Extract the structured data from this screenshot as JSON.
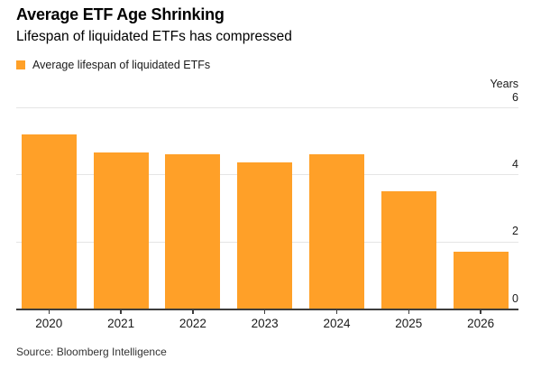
{
  "header": {
    "title": "Average ETF Age Shrinking",
    "subtitle": "Lifespan of liquidated ETFs has compressed"
  },
  "legend": {
    "label": "Average lifespan of liquidated ETFs",
    "swatch_color": "#FFA028"
  },
  "chart_data": {
    "type": "bar",
    "title": "Average ETF Age Shrinking",
    "subtitle": "Lifespan of liquidated ETFs has compressed",
    "series_name": "Average lifespan of liquidated ETFs",
    "categories": [
      "2020",
      "2021",
      "2022",
      "2023",
      "2024",
      "2025",
      "2026"
    ],
    "values": [
      5.2,
      4.65,
      4.6,
      4.35,
      4.6,
      3.5,
      1.7
    ],
    "unit_label": "Years",
    "ylabel": "Years",
    "xlabel": "",
    "ylim": [
      0,
      6
    ],
    "y_ticks": [
      6,
      4,
      2,
      0
    ],
    "grid": true,
    "axis_labels_side": "right",
    "legend_position": "top-left",
    "bar_color": "#FFA028"
  },
  "footer": {
    "source": "Source: Bloomberg Intelligence"
  }
}
